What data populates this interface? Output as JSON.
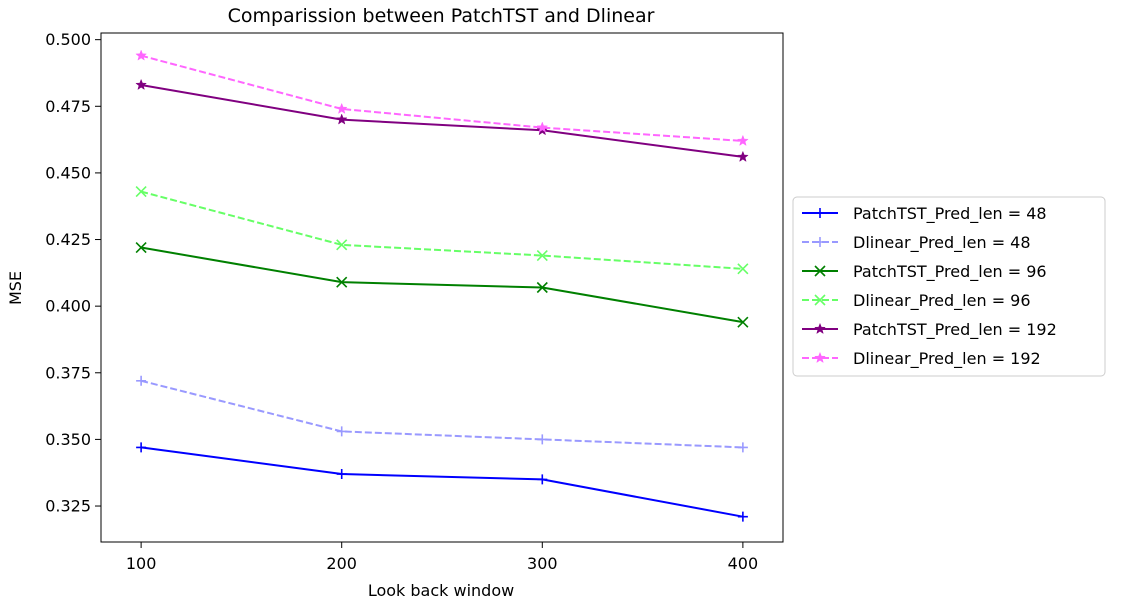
{
  "chart_data": {
    "type": "line",
    "title": "Comparission between PatchTST and Dlinear",
    "xlabel": "Look back window",
    "ylabel": "MSE",
    "x": [
      100,
      200,
      300,
      400
    ],
    "xticks": [
      "100",
      "200",
      "300",
      "400"
    ],
    "yticks": [
      "0.325",
      "0.350",
      "0.375",
      "0.400",
      "0.425",
      "0.450",
      "0.475",
      "0.500"
    ],
    "xlim": [
      80,
      420
    ],
    "ylim": [
      0.3115,
      0.5025
    ],
    "grid": false,
    "legend_position": "center-right outside",
    "series": [
      {
        "name": "PatchTST_Pred_len = 48",
        "values": [
          0.347,
          0.337,
          0.335,
          0.321
        ],
        "color": "#0000ff",
        "dash": "solid",
        "marker": "plus"
      },
      {
        "name": "Dlinear_Pred_len = 48",
        "values": [
          0.372,
          0.353,
          0.35,
          0.347
        ],
        "color": "#9999ff",
        "dash": "dashed",
        "marker": "plus"
      },
      {
        "name": "PatchTST_Pred_len = 96",
        "values": [
          0.422,
          0.409,
          0.407,
          0.394
        ],
        "color": "#008000",
        "dash": "solid",
        "marker": "x"
      },
      {
        "name": "Dlinear_Pred_len = 96",
        "values": [
          0.443,
          0.423,
          0.419,
          0.414
        ],
        "color": "#66ff66",
        "dash": "dashed",
        "marker": "x"
      },
      {
        "name": "PatchTST_Pred_len = 192",
        "values": [
          0.483,
          0.47,
          0.466,
          0.456
        ],
        "color": "#800080",
        "dash": "solid",
        "marker": "star"
      },
      {
        "name": "Dlinear_Pred_len = 192",
        "values": [
          0.494,
          0.474,
          0.467,
          0.462
        ],
        "color": "#ff66ff",
        "dash": "dashed",
        "marker": "star"
      }
    ]
  }
}
